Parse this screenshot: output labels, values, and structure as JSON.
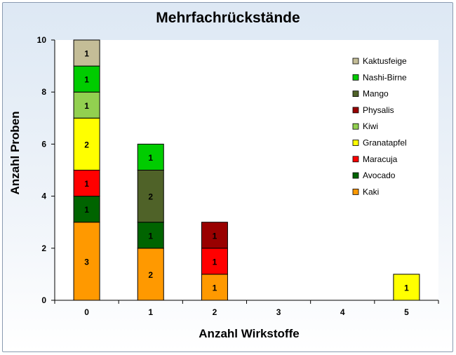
{
  "chart_data": {
    "type": "bar",
    "stacked": true,
    "title": "Mehrfachrückstände",
    "xlabel": "Anzahl Wirkstoffe",
    "ylabel": "Anzahl Proben",
    "categories": [
      "0",
      "1",
      "2",
      "3",
      "4",
      "5"
    ],
    "ylim": [
      0,
      10
    ],
    "yticks": [
      "0",
      "2",
      "4",
      "6",
      "8",
      "10"
    ],
    "legend_position": "right",
    "series": [
      {
        "name": "Kaki",
        "color": "#ff9900",
        "values": [
          3,
          2,
          1,
          0,
          0,
          0
        ]
      },
      {
        "name": "Avocado",
        "color": "#006400",
        "values": [
          1,
          1,
          0,
          0,
          0,
          0
        ]
      },
      {
        "name": "Maracuja",
        "color": "#ff0000",
        "values": [
          1,
          0,
          1,
          0,
          0,
          0
        ]
      },
      {
        "name": "Granatapfel",
        "color": "#ffff00",
        "values": [
          2,
          0,
          0,
          0,
          0,
          1
        ]
      },
      {
        "name": "Kiwi",
        "color": "#92d050",
        "values": [
          1,
          0,
          0,
          0,
          0,
          0
        ]
      },
      {
        "name": "Physalis",
        "color": "#990000",
        "values": [
          0,
          0,
          1,
          0,
          0,
          0
        ]
      },
      {
        "name": "Mango",
        "color": "#4f6228",
        "values": [
          0,
          2,
          0,
          0,
          0,
          0
        ]
      },
      {
        "name": "Nashi-Birne",
        "color": "#00cc00",
        "values": [
          1,
          1,
          0,
          0,
          0,
          0
        ]
      },
      {
        "name": "Kaktusfeige",
        "color": "#c4bd97",
        "values": [
          1,
          0,
          0,
          0,
          0,
          0
        ]
      }
    ]
  }
}
